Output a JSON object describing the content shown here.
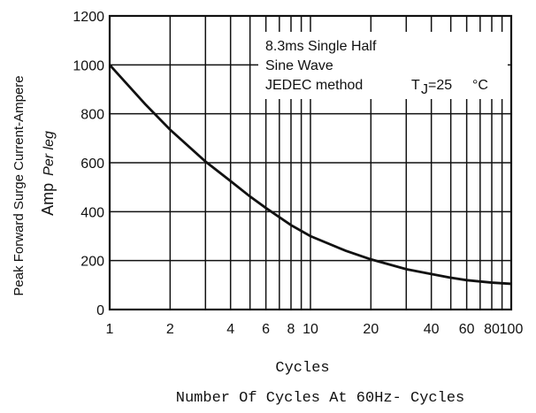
{
  "chart_data": {
    "type": "line",
    "x_scale": "log",
    "xlim": [
      1,
      100
    ],
    "ylim": [
      0,
      1200
    ],
    "x_tick_labels": [
      "1",
      "2",
      "4",
      "6",
      "8",
      "10",
      "20",
      "40",
      "60",
      "80",
      "100"
    ],
    "y_tick_labels": [
      "0",
      "200",
      "400",
      "600",
      "800",
      "1000",
      "1200"
    ],
    "grid": true,
    "ylabel_line1": "Peak Forward Surge Current-Ampere",
    "ylabel_line2_a": "Amp",
    "ylabel_line2_b": "Per leg",
    "xlabel_line1": "Cycles",
    "xlabel_line2": "Number Of Cycles At 60Hz- Cycles",
    "annotation": {
      "line1": "8.3ms Single Half",
      "line2": "Sine Wave",
      "line3_prefix": "JEDEC method",
      "tj_symbol": "T",
      "tj_subscript": "J",
      "tj_value": "=25",
      "tj_unit": "°C"
    },
    "series": [
      {
        "x": [
          1,
          1.5,
          2,
          3,
          4,
          5,
          6,
          8,
          10,
          15,
          20,
          30,
          40,
          50,
          60,
          80,
          100
        ],
        "y": [
          1000,
          840,
          735,
          605,
          525,
          462,
          415,
          345,
          300,
          240,
          205,
          165,
          145,
          130,
          120,
          110,
          105
        ]
      }
    ]
  }
}
